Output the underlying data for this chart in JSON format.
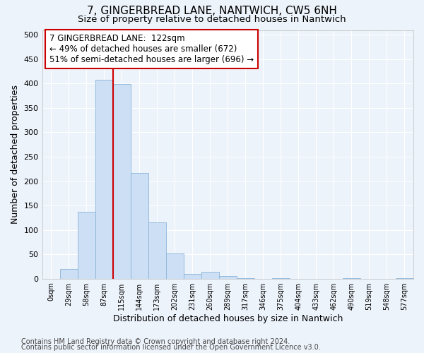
{
  "title": "7, GINGERBREAD LANE, NANTWICH, CW5 6NH",
  "subtitle": "Size of property relative to detached houses in Nantwich",
  "xlabel": "Distribution of detached houses by size in Nantwich",
  "ylabel": "Number of detached properties",
  "footnote1": "Contains HM Land Registry data © Crown copyright and database right 2024.",
  "footnote2": "Contains public sector information licensed under the Open Government Licence v3.0.",
  "bin_labels": [
    "0sqm",
    "29sqm",
    "58sqm",
    "87sqm",
    "115sqm",
    "144sqm",
    "173sqm",
    "202sqm",
    "231sqm",
    "260sqm",
    "289sqm",
    "317sqm",
    "346sqm",
    "375sqm",
    "404sqm",
    "433sqm",
    "462sqm",
    "490sqm",
    "519sqm",
    "548sqm",
    "577sqm"
  ],
  "bar_values": [
    0,
    20,
    137,
    408,
    399,
    216,
    115,
    52,
    10,
    14,
    5,
    1,
    0,
    1,
    0,
    0,
    0,
    1,
    0,
    0,
    1
  ],
  "bar_color": "#ccdff5",
  "bar_edge_color": "#8ab4d8",
  "ylim": [
    0,
    510
  ],
  "yticks": [
    0,
    50,
    100,
    150,
    200,
    250,
    300,
    350,
    400,
    450,
    500
  ],
  "vline_x": 4.0,
  "annotation_text1": "7 GINGERBREAD LANE:  122sqm",
  "annotation_text2": "← 49% of detached houses are smaller (672)",
  "annotation_text3": "51% of semi-detached houses are larger (696) →",
  "annotation_box_color": "#ffffff",
  "annotation_box_edge_color": "#cc0000",
  "vline_color": "#cc0000",
  "background_color": "#edf3fb",
  "grid_color": "#ffffff",
  "title_fontsize": 11,
  "subtitle_fontsize": 9.5,
  "axis_label_fontsize": 9,
  "tick_fontsize": 8,
  "annotation_fontsize": 8.5,
  "footnote_fontsize": 7
}
